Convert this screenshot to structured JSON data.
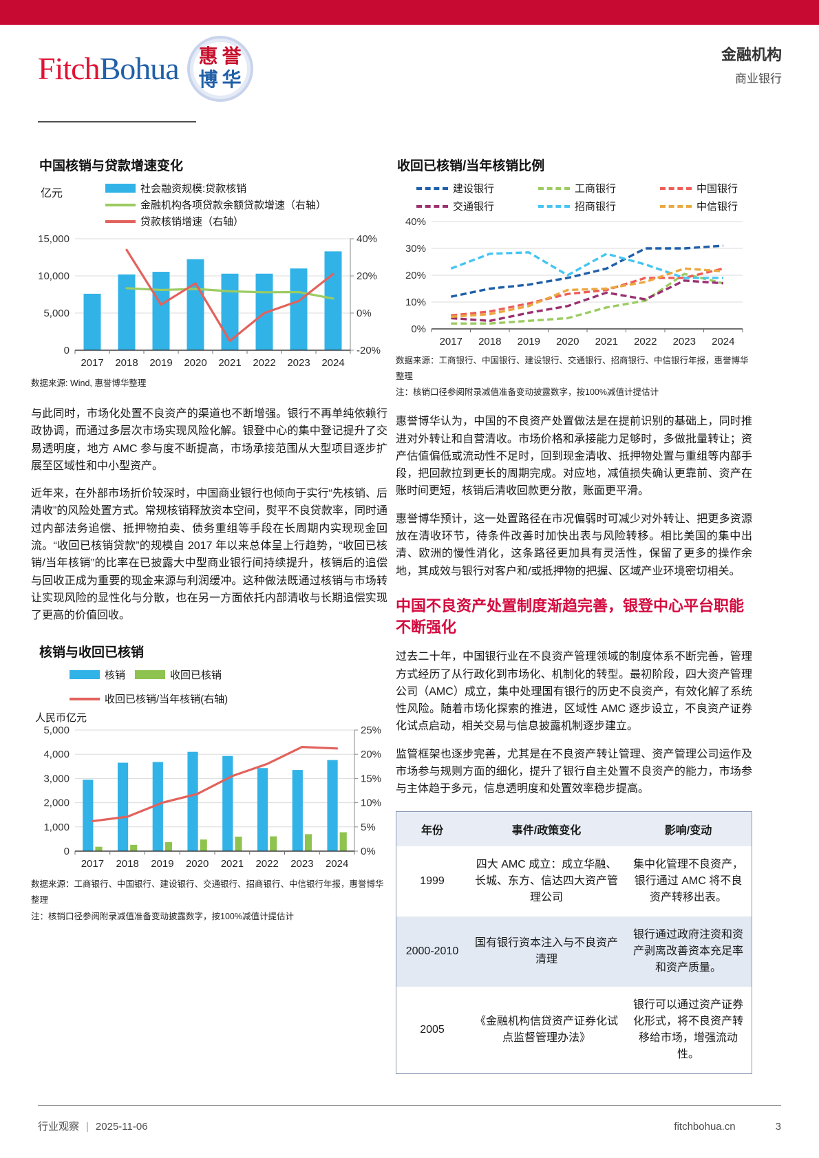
{
  "header": {
    "logo": {
      "fitch": "Fitch",
      "bohua": "Bohua",
      "seal_chars": [
        "惠",
        "誉",
        "博",
        "华"
      ]
    },
    "section": "金融机构",
    "subsection": "商业银行"
  },
  "colors": {
    "brand_red": "#C70A32",
    "heading_red": "#D40B3F",
    "logo_fitch_red": "#E01334",
    "logo_bohua_blue": "#2160A8",
    "table_header_bg": "#E8EDF5",
    "table_alt_row_bg": "#E2E9F3",
    "bar_blue": "#31B3E8",
    "bar_green": "#8FC34F"
  },
  "chart_data": {
    "chart1": {
      "type": "bar+line",
      "title": "中国核销与贷款增速变化",
      "unit_label": "亿元",
      "categories": [
        "2017",
        "2018",
        "2019",
        "2020",
        "2021",
        "2022",
        "2023",
        "2024"
      ],
      "y_left": {
        "min": 0,
        "max": 15000,
        "ticks": [
          0,
          5000,
          10000,
          15000
        ],
        "suffix": ""
      },
      "y_right": {
        "min": -20,
        "max": 40,
        "ticks": [
          -20,
          0,
          20,
          40
        ],
        "suffix": "%"
      },
      "bars": [
        {
          "name": "社会融资规模:贷款核销",
          "color": "#31B3E8",
          "values": [
            7600,
            10200,
            10550,
            12250,
            10300,
            10300,
            11000,
            13300
          ]
        }
      ],
      "lines": [
        {
          "name": "金融机构各项贷款余额贷款增速（右轴）",
          "color": "#9CCB62",
          "axis": "right",
          "values": [
            null,
            13.4,
            12.4,
            13.0,
            11.7,
            11.2,
            11.3,
            7.8
          ]
        },
        {
          "name": "贷款核销增速（右轴）",
          "color": "#E2625C",
          "axis": "right",
          "values": [
            null,
            34,
            4.5,
            16,
            -15,
            0,
            6.5,
            21
          ]
        }
      ],
      "legend": [
        {
          "label": "社会融资规模:贷款核销",
          "color": "#31B3E8",
          "swatch": "bar"
        },
        {
          "label": "金融机构各项贷款余额贷款增速（右轴）",
          "color": "#9CCB62",
          "swatch": "line"
        },
        {
          "label": "贷款核销增速（右轴）",
          "color": "#E2625C",
          "swatch": "line"
        }
      ],
      "source": "数据来源: Wind, 惠誉博华整理"
    },
    "chart2": {
      "type": "bar+line",
      "title": "核销与收回已核销",
      "unit_label": "人民币亿元",
      "categories": [
        "2017",
        "2018",
        "2019",
        "2020",
        "2021",
        "2022",
        "2023",
        "2024"
      ],
      "y_left": {
        "min": 0,
        "max": 5000,
        "ticks": [
          0,
          1000,
          2000,
          3000,
          4000,
          5000
        ],
        "suffix": ""
      },
      "y_right": {
        "min": 0,
        "max": 25,
        "ticks": [
          0,
          5,
          10,
          15,
          20,
          25
        ],
        "suffix": "%"
      },
      "bars": [
        {
          "name": "核销",
          "color": "#31B3E8",
          "values": [
            2950,
            3650,
            3680,
            4100,
            3930,
            3430,
            3350,
            3760
          ]
        },
        {
          "name": "收回已核销",
          "color": "#8FC34F",
          "values": [
            180,
            260,
            370,
            480,
            600,
            610,
            700,
            780
          ]
        }
      ],
      "lines": [
        {
          "name": "收回已核销/当年核销(右轴)",
          "color": "#E2625C",
          "axis": "right",
          "values": [
            6.2,
            7.1,
            10.0,
            11.8,
            15.5,
            18.0,
            21.5,
            21.2
          ]
        }
      ],
      "legend": [
        {
          "label": "核销",
          "color": "#31B3E8",
          "swatch": "bar"
        },
        {
          "label": "收回已核销",
          "color": "#8FC34F",
          "swatch": "bar"
        },
        {
          "label": "收回已核销/当年核销(右轴)",
          "color": "#E2625C",
          "swatch": "line"
        }
      ],
      "sources": [
        "数据来源：工商银行、中国银行、建设银行、交通银行、招商银行、中信银行年报，惠誉博华整理",
        "注：核销口径参阅附录减值准备变动披露数字，按100%减值计提估计"
      ]
    },
    "chart3": {
      "type": "line",
      "title": "收回已核销/当年核销比例",
      "categories": [
        "2017",
        "2018",
        "2019",
        "2020",
        "2021",
        "2022",
        "2023",
        "2024"
      ],
      "y_left": {
        "min": 0,
        "max": 40,
        "ticks": [
          0,
          10,
          20,
          30,
          40
        ],
        "suffix": "%"
      },
      "series": [
        {
          "name": "建设银行",
          "color": "#1F5FA8",
          "dash": true,
          "values": [
            12,
            15,
            16.5,
            19,
            22.5,
            30,
            30,
            31
          ]
        },
        {
          "name": "工商银行",
          "color": "#9CCB62",
          "dash": true,
          "values": [
            2,
            2,
            3,
            4,
            8,
            10.5,
            20.5,
            17
          ]
        },
        {
          "name": "中国银行",
          "color": "#ED5E57",
          "dash": true,
          "values": [
            5,
            6.5,
            9.5,
            13,
            14.5,
            19,
            19,
            22.5
          ]
        },
        {
          "name": "交通银行",
          "color": "#9A3170",
          "dash": true,
          "values": [
            4,
            3,
            6,
            8.5,
            13.5,
            11,
            18,
            17
          ]
        },
        {
          "name": "招商银行",
          "color": "#45C5F2",
          "dash": true,
          "values": [
            22.5,
            28,
            28.5,
            20,
            28,
            24,
            19,
            19
          ]
        },
        {
          "name": "中信银行",
          "color": "#EBA83F",
          "dash": true,
          "values": [
            4.5,
            5.5,
            8.5,
            14.5,
            15,
            17.5,
            22.5,
            21.5
          ]
        }
      ],
      "legend": [
        {
          "label": "建设银行",
          "color": "#1F5FA8",
          "swatch": "dash"
        },
        {
          "label": "工商银行",
          "color": "#9CCB62",
          "swatch": "dash"
        },
        {
          "label": "中国银行",
          "color": "#ED5E57",
          "swatch": "dash"
        },
        {
          "label": "交通银行",
          "color": "#9A3170",
          "swatch": "dash"
        },
        {
          "label": "招商银行",
          "color": "#45C5F2",
          "swatch": "dash"
        },
        {
          "label": "中信银行",
          "color": "#EBA83F",
          "swatch": "dash"
        }
      ],
      "sources": [
        "数据来源：工商银行、中国银行、建设银行、交通银行、招商银行、中信银行年报，惠誉博华整理",
        "注：核销口径参阅附录减值准备变动披露数字，按100%减值计提估计"
      ]
    }
  },
  "left": {
    "paragraphs": [
      "与此同时，市场化处置不良资产的渠道也不断增强。银行不再单纯依赖行政协调，而通过多层次市场实现风险化解。银登中心的集中登记提升了交易透明度，地方 AMC 参与度不断提高，市场承接范围从大型项目逐步扩展至区域性和中小型资产。",
      "近年来，在外部市场折价较深时，中国商业银行也倾向于实行“先核销、后清收”的风险处置方式。常规核销释放资本空间，熨平不良贷款率，同时通过内部法务追偿、抵押物拍卖、债务重组等手段在长周期内实现现金回流。“收回已核销贷款”的规模自 2017 年以来总体呈上行趋势，“收回已核销/当年核销”的比率在已披露大中型商业银行间持续提升，核销后的追偿与回收正成为重要的现金来源与利润缓冲。这种做法既通过核销与市场转让实现风险的显性化与分散，也在另一方面依托内部清收与长期追偿实现了更高的价值回收。"
    ]
  },
  "right": {
    "paragraphs_top": [
      "惠誉博华认为，中国的不良资产处置做法是在提前识别的基础上，同时推进对外转让和自营清收。市场价格和承接能力足够时，多做批量转让；资产估值偏低或流动性不足时，回到现金清收、抵押物处置与重组等内部手段，把回款拉到更长的周期完成。对应地，减值损失确认更靠前、资产在账时间更短，核销后清收回款更分散，账面更平滑。",
      "惠誉博华预计，这一处置路径在市况偏弱时可减少对外转让、把更多资源放在清收环节，待条件改善时加快出表与风险转移。相比美国的集中出清、欧洲的慢性消化，这条路径更加具有灵活性，保留了更多的操作余地，其成效与银行对客户和/或抵押物的把握、区域产业环境密切相关。"
    ],
    "heading": "中国不良资产处置制度渐趋完善，银登中心平台职能不断强化",
    "paragraphs_bottom": [
      "过去二十年，中国银行业在不良资产管理领域的制度体系不断完善，管理方式经历了从行政化到市场化、机制化的转型。最初阶段，四大资产管理公司（AMC）成立，集中处理国有银行的历史不良资产，有效化解了系统性风险。随着市场化探索的推进，区域性 AMC 逐步设立，不良资产证券化试点启动，相关交易与信息披露机制逐步建立。",
      "监管框架也逐步完善，尤其是在不良资产转让管理、资产管理公司运作及市场参与规则方面的细化，提升了银行自主处置不良资产的能力，市场参与主体趋于多元，信息透明度和处置效率稳步提高。"
    ]
  },
  "table": {
    "columns": [
      "年份",
      "事件/政策变化",
      "影响/变动"
    ],
    "rows": [
      [
        "1999",
        "四大 AMC 成立：成立华融、长城、东方、信达四大资产管理公司",
        "集中化管理不良资产，银行通过 AMC 将不良资产转移出表。"
      ],
      [
        "2000-2010",
        "国有银行资本注入与不良资产清理",
        "银行通过政府注资和资产剥离改善资本充足率和资产质量。"
      ],
      [
        "2005",
        "《金融机构信贷资产证券化试点监督管理办法》",
        "银行可以通过资产证券化形式，将不良资产转移给市场，增强流动性。"
      ]
    ]
  },
  "footer": {
    "label": "行业观察",
    "date": "2025-11-06",
    "site": "fitchbohua.cn",
    "page": "3"
  }
}
